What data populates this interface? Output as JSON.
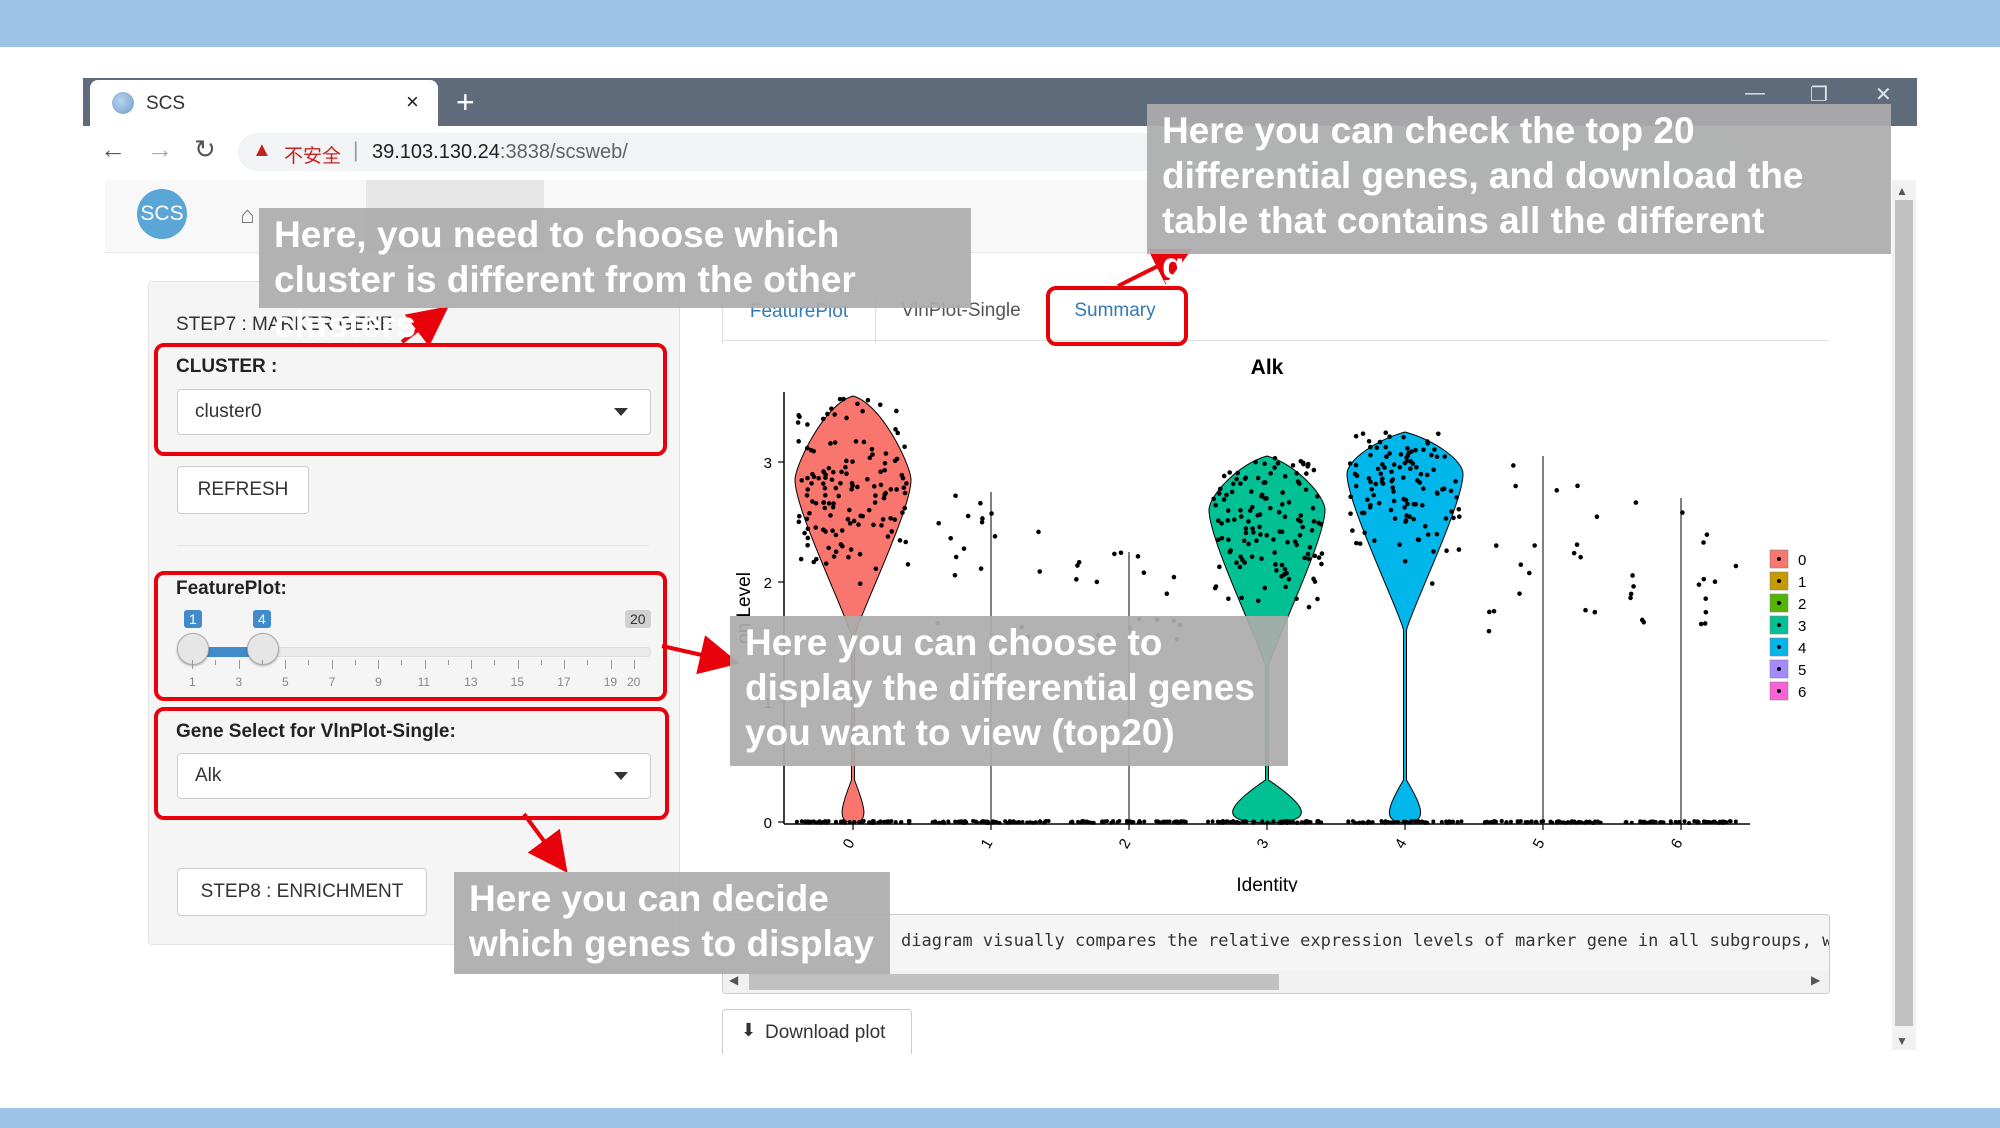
{
  "browser": {
    "tab_title": "SCS",
    "tab_close": "×",
    "new_tab": "+",
    "security_label": "不安全",
    "separator": "|",
    "url_host": "39.103.130.24",
    "url_rest": ":3838/scsweb/",
    "back": "←",
    "forward": "→",
    "reload": "↻",
    "warn": "▲",
    "minimize": "—",
    "maximize": "❐",
    "close": "✕"
  },
  "app": {
    "logo_text": "SCS",
    "home": "⌂"
  },
  "sidebar": {
    "step_title": "STEP7 : MARKER GENE",
    "cluster_label": "CLUSTER :",
    "cluster_value": "cluster0",
    "refresh_label": "REFRESH",
    "featureplot_label": "FeaturePlot:",
    "slider": {
      "low": 1,
      "high": 4,
      "min": 1,
      "max": 20,
      "low_label": "1",
      "high_label": "4",
      "max_label": "20",
      "tick_labels": [
        "1",
        "3",
        "5",
        "7",
        "9",
        "11",
        "13",
        "15",
        "17",
        "19",
        "20"
      ]
    },
    "gene_select_label": "Gene Select for VlnPlot-Single:",
    "gene_value": "Alk",
    "step8_label": "STEP8 : ENRICHMENT"
  },
  "main": {
    "tabs": [
      {
        "label": "FeaturePlot",
        "active": false
      },
      {
        "label": "VlnPlot-Single",
        "active": false
      },
      {
        "label": "Summary",
        "active": true
      }
    ],
    "output_text": "diagram visually compares the relative expression levels of marker gene in all subgroups, w",
    "download_label": "Download plot",
    "download_icon": "download-icon"
  },
  "chart_data": {
    "type": "violin",
    "title": "Alk",
    "xlabel": "Identity",
    "ylabel": "on Level",
    "categories": [
      "0",
      "1",
      "2",
      "3",
      "4",
      "5",
      "6"
    ],
    "y_ticks": [
      "0",
      "1",
      "2",
      "3"
    ],
    "ylim": [
      0,
      3.6
    ],
    "legend_position": "right",
    "legend": [
      {
        "label": "0",
        "color": "#F8766D"
      },
      {
        "label": "1",
        "color": "#C49A00"
      },
      {
        "label": "2",
        "color": "#53B400"
      },
      {
        "label": "3",
        "color": "#00C094"
      },
      {
        "label": "4",
        "color": "#00B6EB"
      },
      {
        "label": "5",
        "color": "#A58AFF"
      },
      {
        "label": "6",
        "color": "#FB61D7"
      }
    ],
    "groups": [
      {
        "id": "0",
        "violin": true,
        "color": "#F8766D",
        "max": 3.55,
        "peak": 2.85,
        "zero_fraction": 0.05
      },
      {
        "id": "1",
        "violin": false,
        "color": "#C49A00",
        "max": 2.75
      },
      {
        "id": "2",
        "violin": false,
        "color": "#53B400",
        "max": 2.25
      },
      {
        "id": "3",
        "violin": true,
        "color": "#00C094",
        "max": 3.05,
        "peak": 2.6,
        "zero_fraction": 0.3
      },
      {
        "id": "4",
        "violin": true,
        "color": "#00B6EB",
        "max": 3.25,
        "peak": 2.9,
        "zero_fraction": 0.1
      },
      {
        "id": "5",
        "violin": false,
        "color": "#A58AFF",
        "max": 3.05
      },
      {
        "id": "6",
        "violin": false,
        "color": "#FB61D7",
        "max": 2.7
      }
    ]
  },
  "annotations": {
    "cluster_note": "Here, you need to choose which cluster is different from the other clusters",
    "summary_note": "Here you can check the top 20 differential genes, and download the table that contains all the different genes",
    "featureplot_note": "Here you can choose to display the differential genes you want to view (top20)",
    "gene_note": "Here you can decide which genes to display"
  }
}
